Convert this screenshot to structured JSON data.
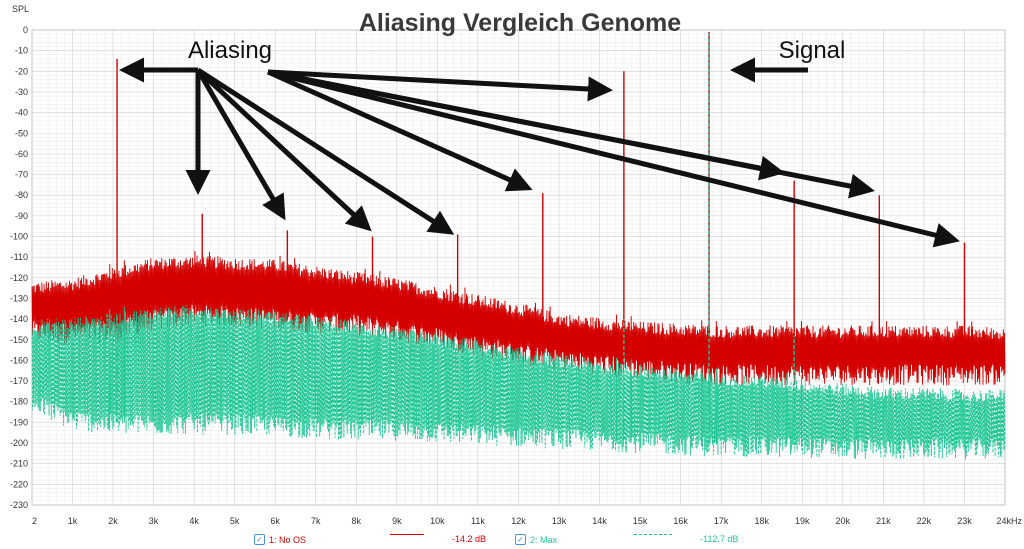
{
  "chart_data": {
    "type": "line",
    "title": "Aliasing Vergleich Genome",
    "ylabel": "SPL",
    "xlabel": "",
    "xlim": [
      2,
      24000
    ],
    "ylim": [
      -230,
      0
    ],
    "x_ticks": [
      "2",
      "1k",
      "2k",
      "3k",
      "4k",
      "5k",
      "6k",
      "7k",
      "8k",
      "9k",
      "10k",
      "11k",
      "12k",
      "13k",
      "14k",
      "15k",
      "16k",
      "17k",
      "18k",
      "19k",
      "20k",
      "21k",
      "22k",
      "23k",
      "24kHz"
    ],
    "y_ticks": [
      "0",
      "-10",
      "-20",
      "-30",
      "-40",
      "-50",
      "-60",
      "-70",
      "-80",
      "-90",
      "-100",
      "-110",
      "-120",
      "-130",
      "-140",
      "-150",
      "-160",
      "-170",
      "-180",
      "-190",
      "-200",
      "-210",
      "-220",
      "-230"
    ],
    "grid": true,
    "annotations": [
      {
        "text": "Aliasing"
      },
      {
        "text": "Signal"
      }
    ],
    "series": [
      {
        "name": "1: No OS",
        "color": "#d40000",
        "style": "solid",
        "legend_value": "-14.2 dB",
        "noise_floor_top": [
          [
            2,
            -125
          ],
          [
            1000,
            -123
          ],
          [
            2000,
            -118
          ],
          [
            3000,
            -113
          ],
          [
            4000,
            -112
          ],
          [
            5000,
            -113
          ],
          [
            6000,
            -114
          ],
          [
            7000,
            -117
          ],
          [
            8000,
            -120
          ],
          [
            9000,
            -123
          ],
          [
            10000,
            -127
          ],
          [
            11000,
            -131
          ],
          [
            12000,
            -135
          ],
          [
            13000,
            -140
          ],
          [
            14000,
            -142
          ],
          [
            15000,
            -144
          ],
          [
            16000,
            -145
          ],
          [
            17000,
            -146
          ],
          [
            18000,
            -146
          ],
          [
            19000,
            -146
          ],
          [
            20000,
            -146
          ],
          [
            21000,
            -146
          ],
          [
            22000,
            -146
          ],
          [
            23000,
            -146
          ],
          [
            24000,
            -147
          ]
        ],
        "noise_floor_bottom": [
          [
            2,
            -145
          ],
          [
            1000,
            -146
          ],
          [
            2000,
            -145
          ],
          [
            3000,
            -140
          ],
          [
            4000,
            -137
          ],
          [
            5000,
            -138
          ],
          [
            6000,
            -139
          ],
          [
            7000,
            -141
          ],
          [
            8000,
            -142
          ],
          [
            9000,
            -145
          ],
          [
            10000,
            -148
          ],
          [
            11000,
            -152
          ],
          [
            12000,
            -156
          ],
          [
            13000,
            -159
          ],
          [
            14000,
            -161
          ],
          [
            15000,
            -163
          ],
          [
            16000,
            -165
          ],
          [
            17000,
            -166
          ],
          [
            18000,
            -166
          ],
          [
            19000,
            -166
          ],
          [
            20000,
            -166
          ],
          [
            21000,
            -166
          ],
          [
            22000,
            -166
          ],
          [
            23000,
            -166
          ],
          [
            24000,
            -166
          ]
        ],
        "peaks": [
          [
            2100,
            -14
          ],
          [
            4200,
            -89
          ],
          [
            6300,
            -97
          ],
          [
            8400,
            -100
          ],
          [
            10500,
            -99
          ],
          [
            12600,
            -79
          ],
          [
            14600,
            -20
          ],
          [
            16700,
            -1
          ],
          [
            18800,
            -73
          ],
          [
            20900,
            -80
          ],
          [
            23000,
            -103
          ]
        ]
      },
      {
        "name": "2: Max",
        "color": "#1ec795",
        "style": "dashed",
        "legend_value": "-112.7 dB",
        "noise_floor_top": [
          [
            2,
            -143
          ],
          [
            1000,
            -142
          ],
          [
            2000,
            -140
          ],
          [
            3000,
            -137
          ],
          [
            4000,
            -136
          ],
          [
            5000,
            -137
          ],
          [
            6000,
            -139
          ],
          [
            7000,
            -141
          ],
          [
            8000,
            -144
          ],
          [
            9000,
            -147
          ],
          [
            10000,
            -150
          ],
          [
            11000,
            -153
          ],
          [
            12000,
            -157
          ],
          [
            13000,
            -160
          ],
          [
            14000,
            -163
          ],
          [
            15000,
            -165
          ],
          [
            16000,
            -167
          ],
          [
            17000,
            -169
          ],
          [
            18000,
            -170
          ],
          [
            19000,
            -172
          ],
          [
            20000,
            -174
          ],
          [
            21000,
            -176
          ],
          [
            22000,
            -176
          ],
          [
            23000,
            -177
          ],
          [
            24000,
            -177
          ]
        ],
        "noise_floor_bottom": [
          [
            2,
            -180
          ],
          [
            1000,
            -188
          ],
          [
            2000,
            -190
          ],
          [
            3000,
            -190
          ],
          [
            4000,
            -190
          ],
          [
            5000,
            -190
          ],
          [
            6000,
            -191
          ],
          [
            7000,
            -192
          ],
          [
            8000,
            -193
          ],
          [
            9000,
            -193
          ],
          [
            10000,
            -194
          ],
          [
            11000,
            -195
          ],
          [
            12000,
            -196
          ],
          [
            13000,
            -197
          ],
          [
            14000,
            -198
          ],
          [
            15000,
            -199
          ],
          [
            16000,
            -200
          ],
          [
            17000,
            -201
          ],
          [
            18000,
            -201
          ],
          [
            19000,
            -201
          ],
          [
            20000,
            -202
          ],
          [
            21000,
            -202
          ],
          [
            22000,
            -202
          ],
          [
            23000,
            -202
          ],
          [
            24000,
            -202
          ]
        ],
        "peaks": [
          [
            16700,
            -2
          ],
          [
            2100,
            -138
          ],
          [
            14600,
            -140
          ],
          [
            18800,
            -148
          ]
        ]
      }
    ]
  },
  "legend": [
    {
      "label": "1: No OS",
      "value": "-14.2 dB",
      "color": "#d40000"
    },
    {
      "label": "2: Max",
      "value": "-112.7 dB",
      "color": "#1ec795"
    }
  ]
}
